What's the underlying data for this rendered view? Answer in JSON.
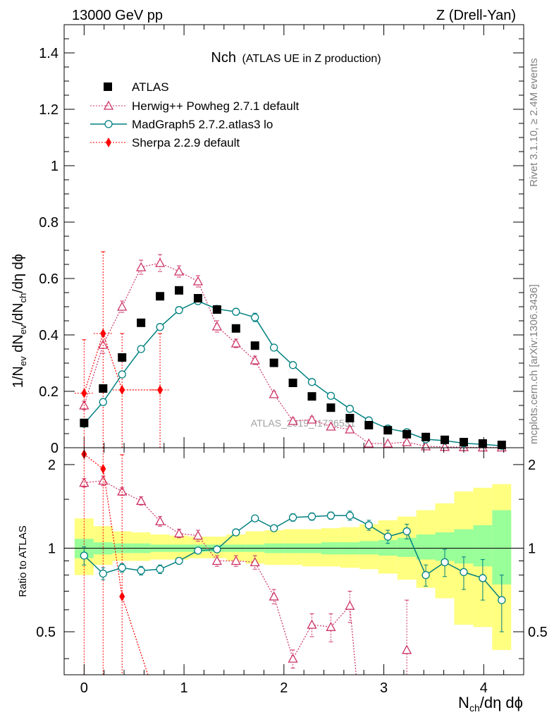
{
  "header": {
    "left": "13000 GeV pp",
    "right": "Z (Drell-Yan)"
  },
  "side_labels": {
    "rivet": "Rivet 3.1.10, ≥ 2.4M events",
    "mcplots": "mcplots.cern.ch [arXiv:1306.3436]"
  },
  "watermark": "ATLAS_2019_I1736531",
  "colors": {
    "data": "#000000",
    "herwig": "#cc3366",
    "madgraph": "#008080",
    "sherpa": "#ff0000",
    "band_inner": "#99ff99",
    "band_outer": "#ffff80"
  },
  "chart_data": [
    {
      "type": "scatter",
      "panel": "main",
      "title": "Nch",
      "subtitle": "(ATLAS UE in Z production)",
      "ylabel_html": "1/N<sub>ev</sub> dN<sub>ev</sub>/dN<sub>ch</sub>/dη dϕ",
      "ylabel_plain": "1/Nev dNev/dNch/dη dϕ",
      "xlim": [
        -0.2,
        4.4
      ],
      "ylim": [
        0,
        1.5
      ],
      "yticks": [
        0,
        0.2,
        0.4,
        0.6,
        0.8,
        1,
        1.2,
        1.4
      ],
      "ytick_labels": [
        "0",
        "0.2",
        "0.4",
        "0.6",
        "0.8",
        "1",
        "1.2",
        "1.4"
      ],
      "legend_position": "top-left",
      "series": [
        {
          "name": "ATLAS",
          "key": "data",
          "marker": "square",
          "x": [
            0.0,
            0.19,
            0.38,
            0.57,
            0.76,
            0.95,
            1.14,
            1.33,
            1.52,
            1.71,
            1.9,
            2.09,
            2.28,
            2.47,
            2.66,
            2.85,
            3.04,
            3.23,
            3.42,
            3.61,
            3.8,
            3.99,
            4.18
          ],
          "y": [
            0.088,
            0.21,
            0.32,
            0.443,
            0.537,
            0.558,
            0.53,
            0.49,
            0.423,
            0.362,
            0.301,
            0.23,
            0.182,
            0.142,
            0.105,
            0.08,
            0.062,
            0.048,
            0.038,
            0.028,
            0.02,
            0.015,
            0.01
          ]
        },
        {
          "name": "Herwig++ Powheg 2.7.1 default",
          "key": "herwig",
          "marker": "triangle",
          "x": [
            0.0,
            0.19,
            0.38,
            0.57,
            0.76,
            0.95,
            1.14,
            1.33,
            1.52,
            1.71,
            1.9,
            2.09,
            2.28,
            2.47,
            2.66,
            2.85,
            3.04,
            3.23,
            3.42,
            3.61,
            3.8,
            3.99,
            4.18
          ],
          "y": [
            0.15,
            0.365,
            0.5,
            0.64,
            0.655,
            0.625,
            0.59,
            0.43,
            0.37,
            0.31,
            0.19,
            0.095,
            0.1,
            0.075,
            0.065,
            0.015,
            0.015,
            0.02,
            0.005,
            0.003,
            0.002,
            0.001,
            0.001
          ],
          "err": [
            0.015,
            0.03,
            0.02,
            0.025,
            0.03,
            0.02,
            0.02,
            0.02,
            0.015,
            0.015,
            0.01,
            0.01,
            0.01,
            0.008,
            0.008,
            0.005,
            0.005,
            0.005,
            0.003,
            0.002,
            0.002,
            0.001,
            0.001
          ]
        },
        {
          "name": "MadGraph5 2.7.2.atlas3 lo",
          "key": "madgraph",
          "marker": "circle",
          "x": [
            0.0,
            0.19,
            0.38,
            0.57,
            0.76,
            0.95,
            1.14,
            1.33,
            1.52,
            1.71,
            1.9,
            2.09,
            2.28,
            2.47,
            2.66,
            2.85,
            3.04,
            3.23,
            3.42,
            3.61,
            3.8,
            3.99,
            4.18
          ],
          "y": [
            0.085,
            0.162,
            0.26,
            0.35,
            0.428,
            0.488,
            0.52,
            0.492,
            0.482,
            0.462,
            0.355,
            0.293,
            0.233,
            0.184,
            0.138,
            0.097,
            0.068,
            0.055,
            0.03,
            0.025,
            0.016,
            0.012,
            0.007
          ],
          "err": [
            0.005,
            0.008,
            0.008,
            0.008,
            0.01,
            0.012,
            0.012,
            0.012,
            0.012,
            0.015,
            0.01,
            0.008,
            0.006,
            0.006,
            0.005,
            0.004,
            0.003,
            0.003,
            0.002,
            0.002,
            0.002,
            0.001,
            0.001
          ]
        },
        {
          "name": "Sherpa 2.2.9 default",
          "key": "sherpa",
          "marker": "diamond",
          "x": [
            0.0,
            0.19,
            0.38,
            0.76
          ],
          "y": [
            0.193,
            0.405,
            0.205,
            0.205
          ],
          "err_lo": [
            0.193,
            0.405,
            0.205,
            0.205
          ],
          "err_hi": [
            0.19,
            0.29,
            0.2,
            0.2
          ]
        }
      ]
    },
    {
      "type": "scatter",
      "panel": "ratio",
      "ylabel": "Ratio to ATLAS",
      "xlabel_html": "N<sub>ch</sub>/dη dϕ",
      "xlabel_plain": "Nch/dη dϕ",
      "xlim": [
        -0.2,
        4.4
      ],
      "ylim": [
        0.35,
        2.3
      ],
      "yticks_major": [
        0.5,
        1,
        2
      ],
      "ytick_labels": [
        "0.5",
        "1",
        "2"
      ],
      "xticks": [
        0,
        1,
        2,
        3,
        4
      ],
      "xtick_labels": [
        "0",
        "1",
        "2",
        "3",
        "4"
      ],
      "reference_line": 1,
      "bins_edges": [
        -0.095,
        0.095,
        0.285,
        0.475,
        0.665,
        0.855,
        1.045,
        1.235,
        1.425,
        1.615,
        1.805,
        1.995,
        2.185,
        2.375,
        2.565,
        2.755,
        2.945,
        3.135,
        3.325,
        3.515,
        3.705,
        3.895,
        4.085,
        4.275
      ],
      "band_inner": [
        [
          0.92,
          1.08
        ],
        [
          0.95,
          1.05
        ],
        [
          0.96,
          1.04
        ],
        [
          0.96,
          1.04
        ],
        [
          0.97,
          1.03
        ],
        [
          0.97,
          1.03
        ],
        [
          0.97,
          1.03
        ],
        [
          0.97,
          1.03
        ],
        [
          0.97,
          1.03
        ],
        [
          0.97,
          1.03
        ],
        [
          0.96,
          1.04
        ],
        [
          0.96,
          1.04
        ],
        [
          0.96,
          1.04
        ],
        [
          0.95,
          1.05
        ],
        [
          0.95,
          1.05
        ],
        [
          0.95,
          1.06
        ],
        [
          0.94,
          1.07
        ],
        [
          0.93,
          1.09
        ],
        [
          0.91,
          1.12
        ],
        [
          0.9,
          1.14
        ],
        [
          0.88,
          1.17
        ],
        [
          0.86,
          1.21
        ],
        [
          0.74,
          1.37
        ]
      ],
      "band_outer": [
        [
          0.8,
          1.28
        ],
        [
          0.87,
          1.2
        ],
        [
          0.9,
          1.15
        ],
        [
          0.9,
          1.14
        ],
        [
          0.91,
          1.12
        ],
        [
          0.91,
          1.11
        ],
        [
          0.92,
          1.1
        ],
        [
          0.92,
          1.1
        ],
        [
          0.9,
          1.12
        ],
        [
          0.88,
          1.15
        ],
        [
          0.87,
          1.16
        ],
        [
          0.87,
          1.17
        ],
        [
          0.86,
          1.17
        ],
        [
          0.86,
          1.18
        ],
        [
          0.85,
          1.19
        ],
        [
          0.84,
          1.22
        ],
        [
          0.81,
          1.26
        ],
        [
          0.77,
          1.3
        ],
        [
          0.72,
          1.37
        ],
        [
          0.66,
          1.45
        ],
        [
          0.53,
          1.6
        ],
        [
          0.52,
          1.65
        ],
        [
          0.43,
          1.7
        ]
      ],
      "series": [
        {
          "name": "Herwig++ Powheg 2.7.1 default",
          "key": "herwig",
          "marker": "triangle",
          "x": [
            0.0,
            0.19,
            0.38,
            0.57,
            0.76,
            0.95,
            1.14,
            1.33,
            1.52,
            1.71,
            1.9,
            2.09,
            2.28,
            2.47,
            2.66,
            3.23
          ],
          "y": [
            1.72,
            1.75,
            1.6,
            1.48,
            1.25,
            1.13,
            1.11,
            0.9,
            0.9,
            0.89,
            0.67,
            0.4,
            0.53,
            0.52,
            0.62,
            0.43
          ],
          "err": [
            0.06,
            0.07,
            0.05,
            0.05,
            0.05,
            0.04,
            0.05,
            0.04,
            0.04,
            0.05,
            0.04,
            0.03,
            0.05,
            0.06,
            0.08,
            0.22
          ],
          "extra_line_to": [
            [
              2.74,
              0.3
            ]
          ]
        },
        {
          "name": "MadGraph5 2.7.2.atlas3 lo",
          "key": "madgraph",
          "marker": "circle",
          "x": [
            0.0,
            0.19,
            0.38,
            0.57,
            0.76,
            0.95,
            1.14,
            1.33,
            1.52,
            1.71,
            1.9,
            2.09,
            2.28,
            2.47,
            2.66,
            2.85,
            3.04,
            3.23,
            3.42,
            3.61,
            3.8,
            3.99,
            4.18
          ],
          "y": [
            0.94,
            0.81,
            0.85,
            0.83,
            0.84,
            0.9,
            0.98,
            0.99,
            1.14,
            1.28,
            1.18,
            1.29,
            1.3,
            1.31,
            1.31,
            1.21,
            1.1,
            1.15,
            0.8,
            0.89,
            0.82,
            0.78,
            0.65
          ],
          "err": [
            0.07,
            0.04,
            0.03,
            0.03,
            0.03,
            0.02,
            0.02,
            0.02,
            0.03,
            0.03,
            0.03,
            0.04,
            0.04,
            0.04,
            0.05,
            0.05,
            0.06,
            0.07,
            0.07,
            0.1,
            0.11,
            0.13,
            0.15
          ]
        },
        {
          "name": "Sherpa 2.2.9 default",
          "key": "sherpa",
          "marker": "diamond",
          "x": [
            0.0,
            0.19,
            0.38
          ],
          "y": [
            2.18,
            1.93,
            0.67
          ],
          "err_lo": [
            2.18,
            1.93,
            0.67
          ],
          "err_hi": [
            1.5,
            1.5,
            1.5
          ],
          "extra_line_to": [
            [
              0.7,
              0.3
            ]
          ]
        }
      ]
    }
  ]
}
